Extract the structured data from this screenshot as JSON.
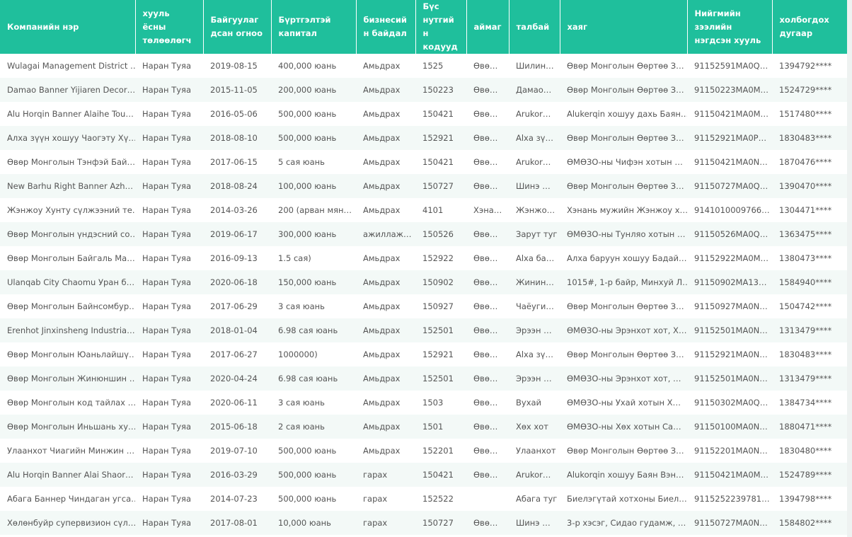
{
  "table": {
    "headers": [
      "Компанийн нэр",
      "хууль ёсны төлөөлөгч",
      "Байгуулагдсан огноо",
      "Бүртгэлтэй капитал",
      "бизнесийн байдал",
      "Бүс нутгийн кодууд",
      "аймаг",
      "талбай",
      "хаяг",
      "Нийгмийн зээлийн нэгдсэн хууль",
      "холбогдох дугаар"
    ],
    "rows": [
      [
        "Wulagai Management District …",
        "Наран Туяа",
        "2019-08-15",
        "400,000 юань",
        "Амьдрах",
        "1525",
        "Өвө…",
        "Шилин…",
        "Өвөр Монголын Өөртөө З…",
        "91152591MA0Q…",
        "1394792****"
      ],
      [
        "Damao Banner Yijiaren Decor…",
        "Наран Туяа",
        "2015-11-05",
        "200,000 юань",
        "Амьдрах",
        "150223",
        "Өвө…",
        "Дамао…",
        "Өвөр Монголын Өөртөө З…",
        "91150223MA0M…",
        "1524729****"
      ],
      [
        "Alu Horqin Banner Alaihe Tou…",
        "Наран Туяа",
        "2016-05-06",
        "500,000 юань",
        "Амьдрах",
        "150421",
        "Өвө…",
        "Arukor…",
        "Alukerqin хошуу дахь Баян…",
        "91150421MA0M…",
        "1517480****"
      ],
      [
        "Алха зүүн хошуу Чаогэту Хү…",
        "Наран Туяа",
        "2018-08-10",
        "500,000 юань",
        "Амьдрах",
        "152921",
        "Өвө…",
        "Alxa зү…",
        "Өвөр Монголын Өөртөө З…",
        "91152921MA0P…",
        "1830483****"
      ],
      [
        "Өвөр Монголын Тэнфэй Бай…",
        "Наран Туяа",
        "2017-06-15",
        "5 сая юань",
        "Амьдрах",
        "150421",
        "Өвө…",
        "Arukor…",
        "ӨМӨЗО-ны Чифэн хотын …",
        "91150421MA0N…",
        "1870476****"
      ],
      [
        "New Barhu Right Banner Azh…",
        "Наран Туяа",
        "2018-08-24",
        "100,000 юань",
        "Амьдрах",
        "150727",
        "Өвө…",
        "Шинэ …",
        "Өвөр Монголын Өөртөө З…",
        "91150727MA0Q…",
        "1390470****"
      ],
      [
        "Жэнжоу Хунту сүлжээний те…",
        "Наран Туяа",
        "2014-03-26",
        "200 (арван мян…",
        "Амьдрах",
        "4101",
        "Хэна…",
        "Жэнжо…",
        "Хэнань мужийн Жэнжоу х…",
        "9141010009766…",
        "1304471****"
      ],
      [
        "Өвөр Монголын үндэсний со…",
        "Наран Туяа",
        "2019-06-17",
        "300,000 юань",
        "ажиллаж…",
        "150526",
        "Өвө…",
        "Зарут туг",
        "ӨМӨЗО-ны Тунляо хотын …",
        "91150526MA0Q…",
        "1363475****"
      ],
      [
        "Өвөр Монголын Байгаль Ма…",
        "Наран Туяа",
        "2016-09-13",
        "1.5 сая)",
        "Амьдрах",
        "152922",
        "Өвө…",
        "Alxa ба…",
        "Алха баруун хошуу Бадай…",
        "91152922MA0M…",
        "1380473****"
      ],
      [
        "Ulanqab City Chaomu Уран б…",
        "Наран Туяа",
        "2020-06-18",
        "150,000 юань",
        "Амьдрах",
        "150902",
        "Өвө…",
        "Жинин…",
        "1015#, 1-р байр, Минхуй Л…",
        "91150902MA13…",
        "1584940****"
      ],
      [
        "Өвөр Монголын Байнсомбур…",
        "Наран Туяа",
        "2017-06-29",
        "3 сая юань",
        "Амьдрах",
        "150927",
        "Өвө…",
        "Чаёуги…",
        "Өвөр Монголын Өөртөө З…",
        "91150927MA0N…",
        "1504742****"
      ],
      [
        "Erenhot Jinxinsheng Industria…",
        "Наран Туяа",
        "2018-01-04",
        "6.98 сая юань",
        "Амьдрах",
        "152501",
        "Өвө…",
        "Эрээн …",
        "ӨМӨЗО-ны Эрэнхот хот, Х…",
        "91152501MA0N…",
        "1313479****"
      ],
      [
        "Өвөр Монголын Юаньлайшү…",
        "Наран Туяа",
        "2017-06-27",
        "1000000)",
        "Амьдрах",
        "152921",
        "Өвө…",
        "Alxa зү…",
        "Өвөр Монголын Өөртөө З…",
        "91152921MA0N…",
        "1830483****"
      ],
      [
        "Өвөр Монголын Жинюншин …",
        "Наран Туяа",
        "2020-04-24",
        "6.98 сая юань",
        "Амьдрах",
        "152501",
        "Өвө…",
        "Эрээн …",
        "ӨМӨЗО-ны Эрэнхот хот, …",
        "91152501MA0N…",
        "1313479****"
      ],
      [
        "Өвөр Монголын код тайлах …",
        "Наран Туяа",
        "2020-06-11",
        "3 сая юань",
        "Амьдрах",
        "1503",
        "Өвө…",
        "Вухай",
        "ӨМӨЗО-ны Ухай хотын Х…",
        "91150302MA0Q…",
        "1384734****"
      ],
      [
        "Өвөр Монголын Иньшань ху…",
        "Наран Туяа",
        "2015-06-18",
        "2 сая юань",
        "Амьдрах",
        "1501",
        "Өвө…",
        "Хөх хот",
        "ӨМӨЗО-ны Хөх хотын Са…",
        "91150100MA0N…",
        "1880471****"
      ],
      [
        "Улаанхот Чиагийн Минжин …",
        "Наран Туяа",
        "2019-07-10",
        "500,000 юань",
        "Амьдрах",
        "152201",
        "Өвө…",
        "Улаанхот",
        "Өвөр Монголын Өөртөө З…",
        "91152201MA0N…",
        "1830480****"
      ],
      [
        "Alu Horqin Banner Alai Shaor…",
        "Наран Туяа",
        "2016-03-29",
        "500,000 юань",
        "гарах",
        "150421",
        "Өвө…",
        "Arukor…",
        "Alukorqin хошуу Баян Вэн…",
        "91150421MA0M…",
        "1524789****"
      ],
      [
        "Абага Баннер Чиндаган угса…",
        "Наран Туяа",
        "2014-07-23",
        "500,000 юань",
        "гарах",
        "152522",
        null,
        "Абага туг",
        "Биелэгүтай хотхоны Биел…",
        "9115252239781…",
        "1394798****"
      ],
      [
        "Хөлөнбуйр супервизион сүл…",
        "Наран Туяа",
        "2017-08-01",
        "10,000 юань",
        "гарах",
        "150727",
        "Өвө…",
        "Шинэ …",
        "3-р хэсэг, Сидао гудамж, …",
        "91150727MA0N…",
        "1584802****"
      ]
    ]
  }
}
